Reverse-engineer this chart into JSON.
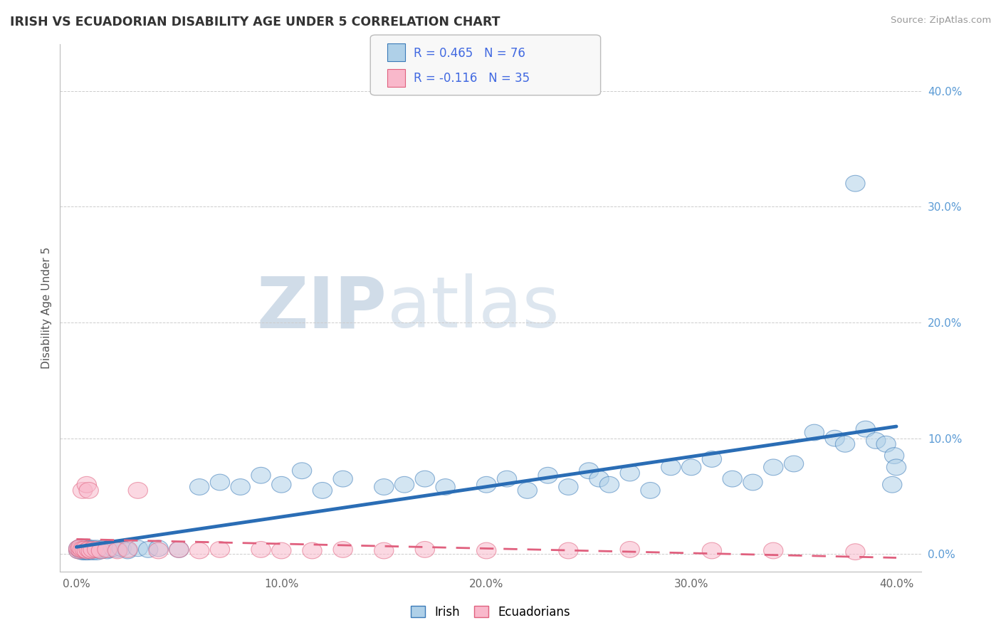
{
  "title": "IRISH VS ECUADORIAN DISABILITY AGE UNDER 5 CORRELATION CHART",
  "source": "Source: ZipAtlas.com",
  "ylabel": "Disability Age Under 5",
  "xlim": [
    0.0,
    0.4
  ],
  "ylim": [
    0.0,
    0.42
  ],
  "ytick_labels": [
    "0.0%",
    "10.0%",
    "20.0%",
    "30.0%",
    "40.0%"
  ],
  "ytick_vals": [
    0.0,
    0.1,
    0.2,
    0.3,
    0.4
  ],
  "xtick_labels": [
    "0.0%",
    "10.0%",
    "20.0%",
    "30.0%",
    "40.0%"
  ],
  "xtick_vals": [
    0.0,
    0.1,
    0.2,
    0.3,
    0.4
  ],
  "irish_color": "#afd0e8",
  "irish_edge_color": "#3a7ab8",
  "ecuadorian_color": "#f9b8cb",
  "ecuadorian_edge_color": "#e0607e",
  "irish_line_color": "#2a6db5",
  "ecuadorian_line_color": "#e0607e",
  "irish_R": 0.465,
  "irish_N": 76,
  "ecuadorian_R": -0.116,
  "ecuadorian_N": 35,
  "legend_R_color": "#4169e1",
  "watermark1": "ZIP",
  "watermark2": "atlas",
  "legend_items": [
    "Irish",
    "Ecuadorians"
  ],
  "irish_scatter_x": [
    0.001,
    0.001,
    0.002,
    0.002,
    0.002,
    0.003,
    0.003,
    0.003,
    0.004,
    0.004,
    0.004,
    0.005,
    0.005,
    0.005,
    0.006,
    0.006,
    0.006,
    0.007,
    0.007,
    0.008,
    0.008,
    0.009,
    0.01,
    0.01,
    0.011,
    0.012,
    0.013,
    0.015,
    0.016,
    0.018,
    0.02,
    0.022,
    0.025,
    0.03,
    0.035,
    0.04,
    0.05,
    0.06,
    0.07,
    0.08,
    0.09,
    0.1,
    0.11,
    0.12,
    0.13,
    0.15,
    0.16,
    0.17,
    0.18,
    0.2,
    0.21,
    0.22,
    0.23,
    0.24,
    0.25,
    0.255,
    0.26,
    0.27,
    0.28,
    0.29,
    0.3,
    0.31,
    0.32,
    0.33,
    0.34,
    0.35,
    0.36,
    0.37,
    0.375,
    0.38,
    0.385,
    0.39,
    0.395,
    0.398,
    0.399,
    0.4
  ],
  "irish_scatter_y": [
    0.003,
    0.005,
    0.003,
    0.006,
    0.004,
    0.004,
    0.006,
    0.002,
    0.003,
    0.005,
    0.002,
    0.004,
    0.006,
    0.002,
    0.003,
    0.005,
    0.002,
    0.004,
    0.003,
    0.005,
    0.002,
    0.003,
    0.005,
    0.002,
    0.004,
    0.003,
    0.005,
    0.003,
    0.004,
    0.005,
    0.004,
    0.005,
    0.003,
    0.005,
    0.004,
    0.005,
    0.004,
    0.058,
    0.062,
    0.058,
    0.068,
    0.06,
    0.072,
    0.055,
    0.065,
    0.058,
    0.06,
    0.065,
    0.058,
    0.06,
    0.065,
    0.055,
    0.068,
    0.058,
    0.072,
    0.065,
    0.06,
    0.07,
    0.055,
    0.075,
    0.075,
    0.082,
    0.065,
    0.062,
    0.075,
    0.078,
    0.105,
    0.1,
    0.095,
    0.32,
    0.108,
    0.098,
    0.095,
    0.06,
    0.085,
    0.075
  ],
  "ecuadorian_scatter_x": [
    0.001,
    0.001,
    0.002,
    0.002,
    0.003,
    0.003,
    0.004,
    0.005,
    0.005,
    0.006,
    0.006,
    0.007,
    0.008,
    0.01,
    0.012,
    0.015,
    0.02,
    0.025,
    0.03,
    0.04,
    0.05,
    0.06,
    0.07,
    0.09,
    0.1,
    0.115,
    0.13,
    0.15,
    0.17,
    0.2,
    0.24,
    0.27,
    0.31,
    0.34,
    0.38
  ],
  "ecuadorian_scatter_y": [
    0.003,
    0.005,
    0.004,
    0.006,
    0.055,
    0.004,
    0.004,
    0.06,
    0.003,
    0.055,
    0.004,
    0.003,
    0.004,
    0.004,
    0.003,
    0.004,
    0.003,
    0.004,
    0.055,
    0.003,
    0.004,
    0.003,
    0.004,
    0.004,
    0.003,
    0.003,
    0.004,
    0.003,
    0.004,
    0.003,
    0.003,
    0.004,
    0.003,
    0.003,
    0.002
  ]
}
